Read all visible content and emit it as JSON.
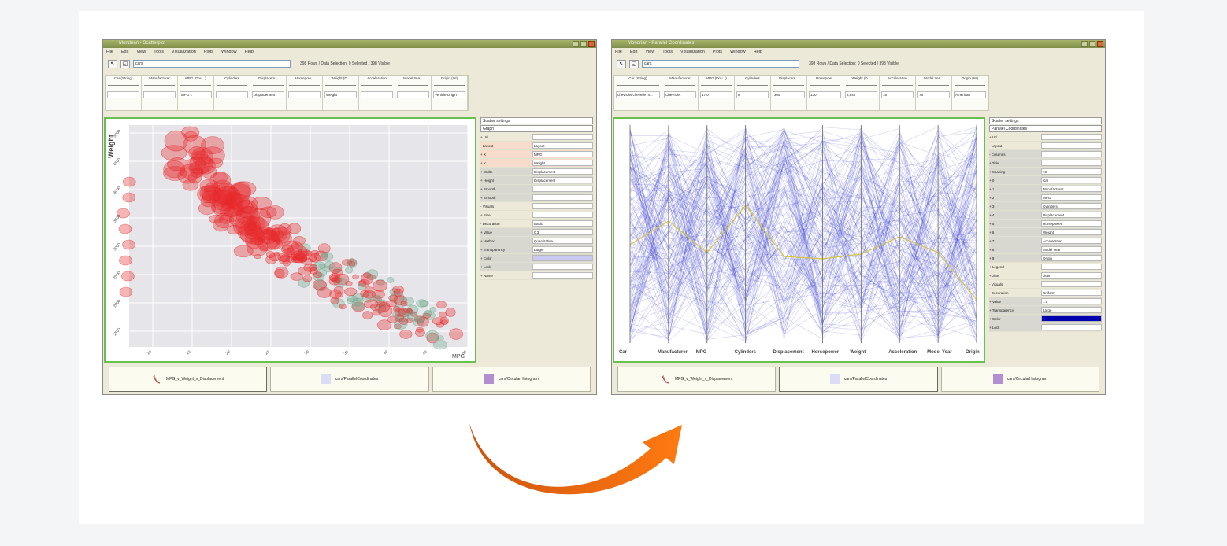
{
  "left_window": {
    "title": "Mondrian - Scatterplot",
    "menu": [
      "File",
      "Edit",
      "View",
      "Tools",
      "Visualization",
      "Plots",
      "Window",
      "Help"
    ],
    "command_value": "cars",
    "status": "398 Rows / Data Selection: 0 Selected / 398 Visible",
    "variables": [
      {
        "name": "Car (String)",
        "value": ""
      },
      {
        "name": "Manufacturer",
        "value": ""
      },
      {
        "name": "MPG (Dou...)",
        "value": "MPG 1"
      },
      {
        "name": "Cylinders",
        "value": ""
      },
      {
        "name": "Displacem...",
        "value": "Displacement"
      },
      {
        "name": "Horsepow...",
        "value": ""
      },
      {
        "name": "Weight (D...",
        "value": "Weight"
      },
      {
        "name": "Acceleration",
        "value": ""
      },
      {
        "name": "Model Yea...",
        "value": ""
      },
      {
        "name": "Origin (Int)",
        "value": "Vehicle Origin"
      }
    ],
    "plot": {
      "y_label": "Weight",
      "x_label": "MPG",
      "x_ticks": [
        "10",
        "15",
        "20",
        "25",
        "30",
        "35",
        "40",
        "45",
        "50"
      ],
      "y_ticks": [
        "5000",
        "4500",
        "4000",
        "3500",
        "3000",
        "2500",
        "2000",
        "1500"
      ]
    },
    "panel": {
      "header": "Scatter settings",
      "subheader": "Graph",
      "rows": [
        {
          "key": "+ Url",
          "value": "",
          "style": ""
        },
        {
          "key": "- Layout",
          "value": "Layout",
          "style": "hl"
        },
        {
          "key": "+ X",
          "value": "MPG",
          "style": "hl"
        },
        {
          "key": "+ Y",
          "value": "Weight",
          "style": "hl"
        },
        {
          "key": "+ Width",
          "value": "Displacement",
          "style": "gray"
        },
        {
          "key": "+ Height",
          "value": "Displacement",
          "style": "gray"
        },
        {
          "key": "+ Smooth",
          "value": "",
          "style": "gray"
        },
        {
          "key": "+ Smooth",
          "value": "",
          "style": "gray"
        },
        {
          "key": "- Visuals",
          "value": "",
          "style": ""
        },
        {
          "key": "+ Size",
          "value": "",
          "style": ""
        },
        {
          "key": "- Decoration",
          "value": "Basic",
          "style": ""
        },
        {
          "key": "+ Value",
          "value": "0.3",
          "style": "gray"
        },
        {
          "key": "+ Method",
          "value": "Quantitative",
          "style": "gray"
        },
        {
          "key": "+ Transparency",
          "value": "Large",
          "style": "gray"
        },
        {
          "key": "+ Color",
          "value": "",
          "style": "gray"
        },
        {
          "key": "+ Lock",
          "value": "",
          "style": "gray"
        },
        {
          "key": "+ Name",
          "value": "",
          "style": ""
        }
      ],
      "swatch_color": "#c8c8f0"
    },
    "tray": [
      "MPG_v_Weight_v_Displacement",
      "cars/ParallelCoordinates",
      "cars/CircularHistogram"
    ]
  },
  "right_window": {
    "title": "Mondrian - Parallel Coordinates",
    "menu": [
      "File",
      "Edit",
      "View",
      "Tools",
      "Visualization",
      "Plots",
      "Window",
      "Help"
    ],
    "command_value": "cars",
    "status": "398 Rows / Data Selection: 0 Selected / 398 Visible",
    "variables": [
      {
        "name": "Car (String)",
        "value": "chevrolet chevelle m..."
      },
      {
        "name": "Manufacturer",
        "value": "Chevrolet"
      },
      {
        "name": "MPG (Dou...)",
        "value": "17.0"
      },
      {
        "name": "Cylinders",
        "value": "8"
      },
      {
        "name": "Displacem...",
        "value": "305"
      },
      {
        "name": "Horsepow...",
        "value": "130"
      },
      {
        "name": "Weight (D...",
        "value": "3,840"
      },
      {
        "name": "Acceleration",
        "value": "15"
      },
      {
        "name": "Model Yea...",
        "value": "79"
      },
      {
        "name": "Origin (Int)",
        "value": "American"
      }
    ],
    "plot": {
      "axes": [
        "Car",
        "Manufacturer",
        "MPG",
        "Cylinders",
        "Displacement",
        "Horsepower",
        "Weight",
        "Acceleration",
        "Model Year",
        "Origin"
      ]
    },
    "panel": {
      "header": "Scatter settings",
      "subheader": "Parallel Coordinates",
      "rows": [
        {
          "key": "+ Url",
          "value": "",
          "style": ""
        },
        {
          "key": "- Layout",
          "value": "",
          "style": ""
        },
        {
          "key": "- Columns",
          "value": "",
          "style": "gray"
        },
        {
          "key": "+ Title",
          "value": "",
          "style": "gray"
        },
        {
          "key": "+ Spacing",
          "value": "10",
          "style": "gray"
        },
        {
          "key": "+ 0",
          "value": "Car",
          "style": "gray"
        },
        {
          "key": "+ 1",
          "value": "Manufacturer",
          "style": "gray"
        },
        {
          "key": "+ 2",
          "value": "MPG",
          "style": "gray"
        },
        {
          "key": "+ 3",
          "value": "Cylinders",
          "style": "gray"
        },
        {
          "key": "+ 4",
          "value": "Displacement",
          "style": "gray"
        },
        {
          "key": "+ 5",
          "value": "Horsepower",
          "style": "gray"
        },
        {
          "key": "+ 6",
          "value": "Weight",
          "style": "gray"
        },
        {
          "key": "+ 7",
          "value": "Acceleration",
          "style": "gray"
        },
        {
          "key": "+ 8",
          "value": "Model Year",
          "style": "gray"
        },
        {
          "key": "+ 9",
          "value": "Origin",
          "style": "gray"
        },
        {
          "key": "+ Legend",
          "value": "",
          "style": ""
        },
        {
          "key": "+ Jitter",
          "value": "Jitter",
          "style": ""
        },
        {
          "key": "- Visuals",
          "value": "",
          "style": ""
        },
        {
          "key": "- Decoration",
          "value": "Uniform",
          "style": ""
        },
        {
          "key": "+ Value",
          "value": "1.0",
          "style": "gray"
        },
        {
          "key": "+ Transparency",
          "value": "Large",
          "style": "gray"
        },
        {
          "key": "+ Color",
          "value": "",
          "style": "gray"
        },
        {
          "key": "+ Lock",
          "value": "",
          "style": "gray"
        }
      ],
      "swatch_color": "#0000b0"
    },
    "tray": [
      "MPG_v_Weight_v_Displacement",
      "cars/ParallelCoordinates",
      "cars/CircularHistogram"
    ]
  },
  "colors": {
    "scatter_point": "#e8282a",
    "scatter_point_alt": "#6aa58a",
    "parallel_line": "#1a22c8",
    "arrow": "#e3620b",
    "frame_green": "#68c04f"
  }
}
